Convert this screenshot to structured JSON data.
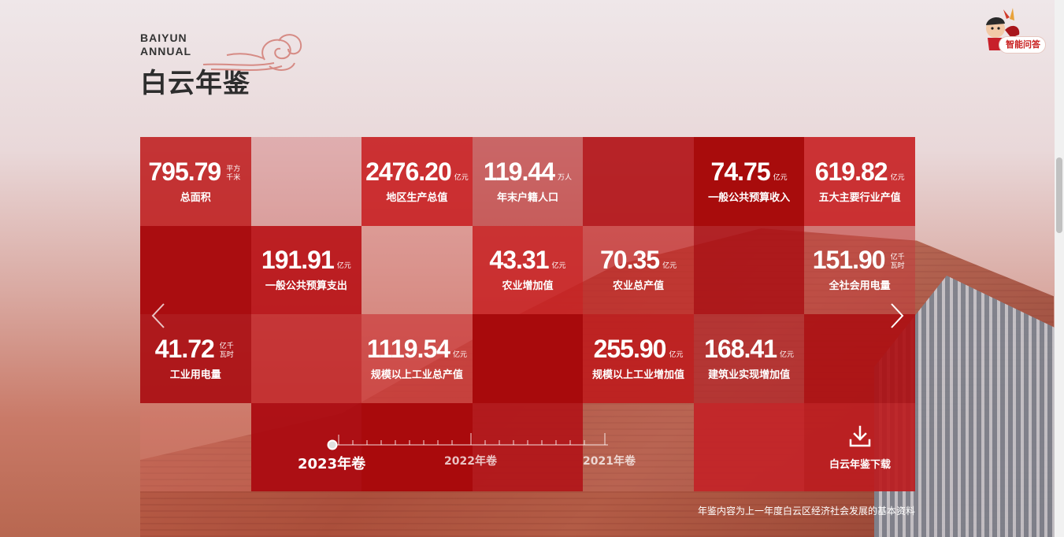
{
  "logo": {
    "en_line1": "BAIYUN",
    "en_line2": "ANNUAL",
    "cn": "白云年鉴"
  },
  "assistant": {
    "label": "智能问答"
  },
  "colors": {
    "accent": "#c81e1e",
    "dark_red": "#a80c0c",
    "mid_red": "#c0282a",
    "translucent_red": "#c8302f"
  },
  "stats": [
    {
      "value": "795.79",
      "unit": "平方千米",
      "label": "总面积"
    },
    {
      "value": "2476.20",
      "unit": "亿元",
      "label": "地区生产总值"
    },
    {
      "value": "119.44",
      "unit": "万人",
      "label": "年末户籍人口"
    },
    {
      "value": "74.75",
      "unit": "亿元",
      "label": "一般公共预算收入"
    },
    {
      "value": "619.82",
      "unit": "亿元",
      "label": "五大主要行业产值"
    },
    {
      "value": "191.91",
      "unit": "亿元",
      "label": "一般公共预算支出"
    },
    {
      "value": "43.31",
      "unit": "亿元",
      "label": "农业增加值"
    },
    {
      "value": "70.35",
      "unit": "亿元",
      "label": "农业总产值"
    },
    {
      "value": "151.90",
      "unit": "亿千瓦时",
      "label": "全社会用电量"
    },
    {
      "value": "41.72",
      "unit": "亿千瓦时",
      "label": "工业用电量"
    },
    {
      "value": "1119.54",
      "unit": "亿元",
      "label": "规模以上工业总产值"
    },
    {
      "value": "255.90",
      "unit": "亿元",
      "label": "规模以上工业增加值"
    },
    {
      "value": "168.41",
      "unit": "亿元",
      "label": "建筑业实现增加值"
    }
  ],
  "timeline": {
    "years": [
      "2023年卷",
      "2022年卷",
      "2021年卷"
    ],
    "selected": "2023年卷"
  },
  "download": {
    "label": "白云年鉴下载",
    "icon": "download-icon"
  },
  "footnote": "年鉴内容为上一年度白云区经济社会发展的基本资料"
}
